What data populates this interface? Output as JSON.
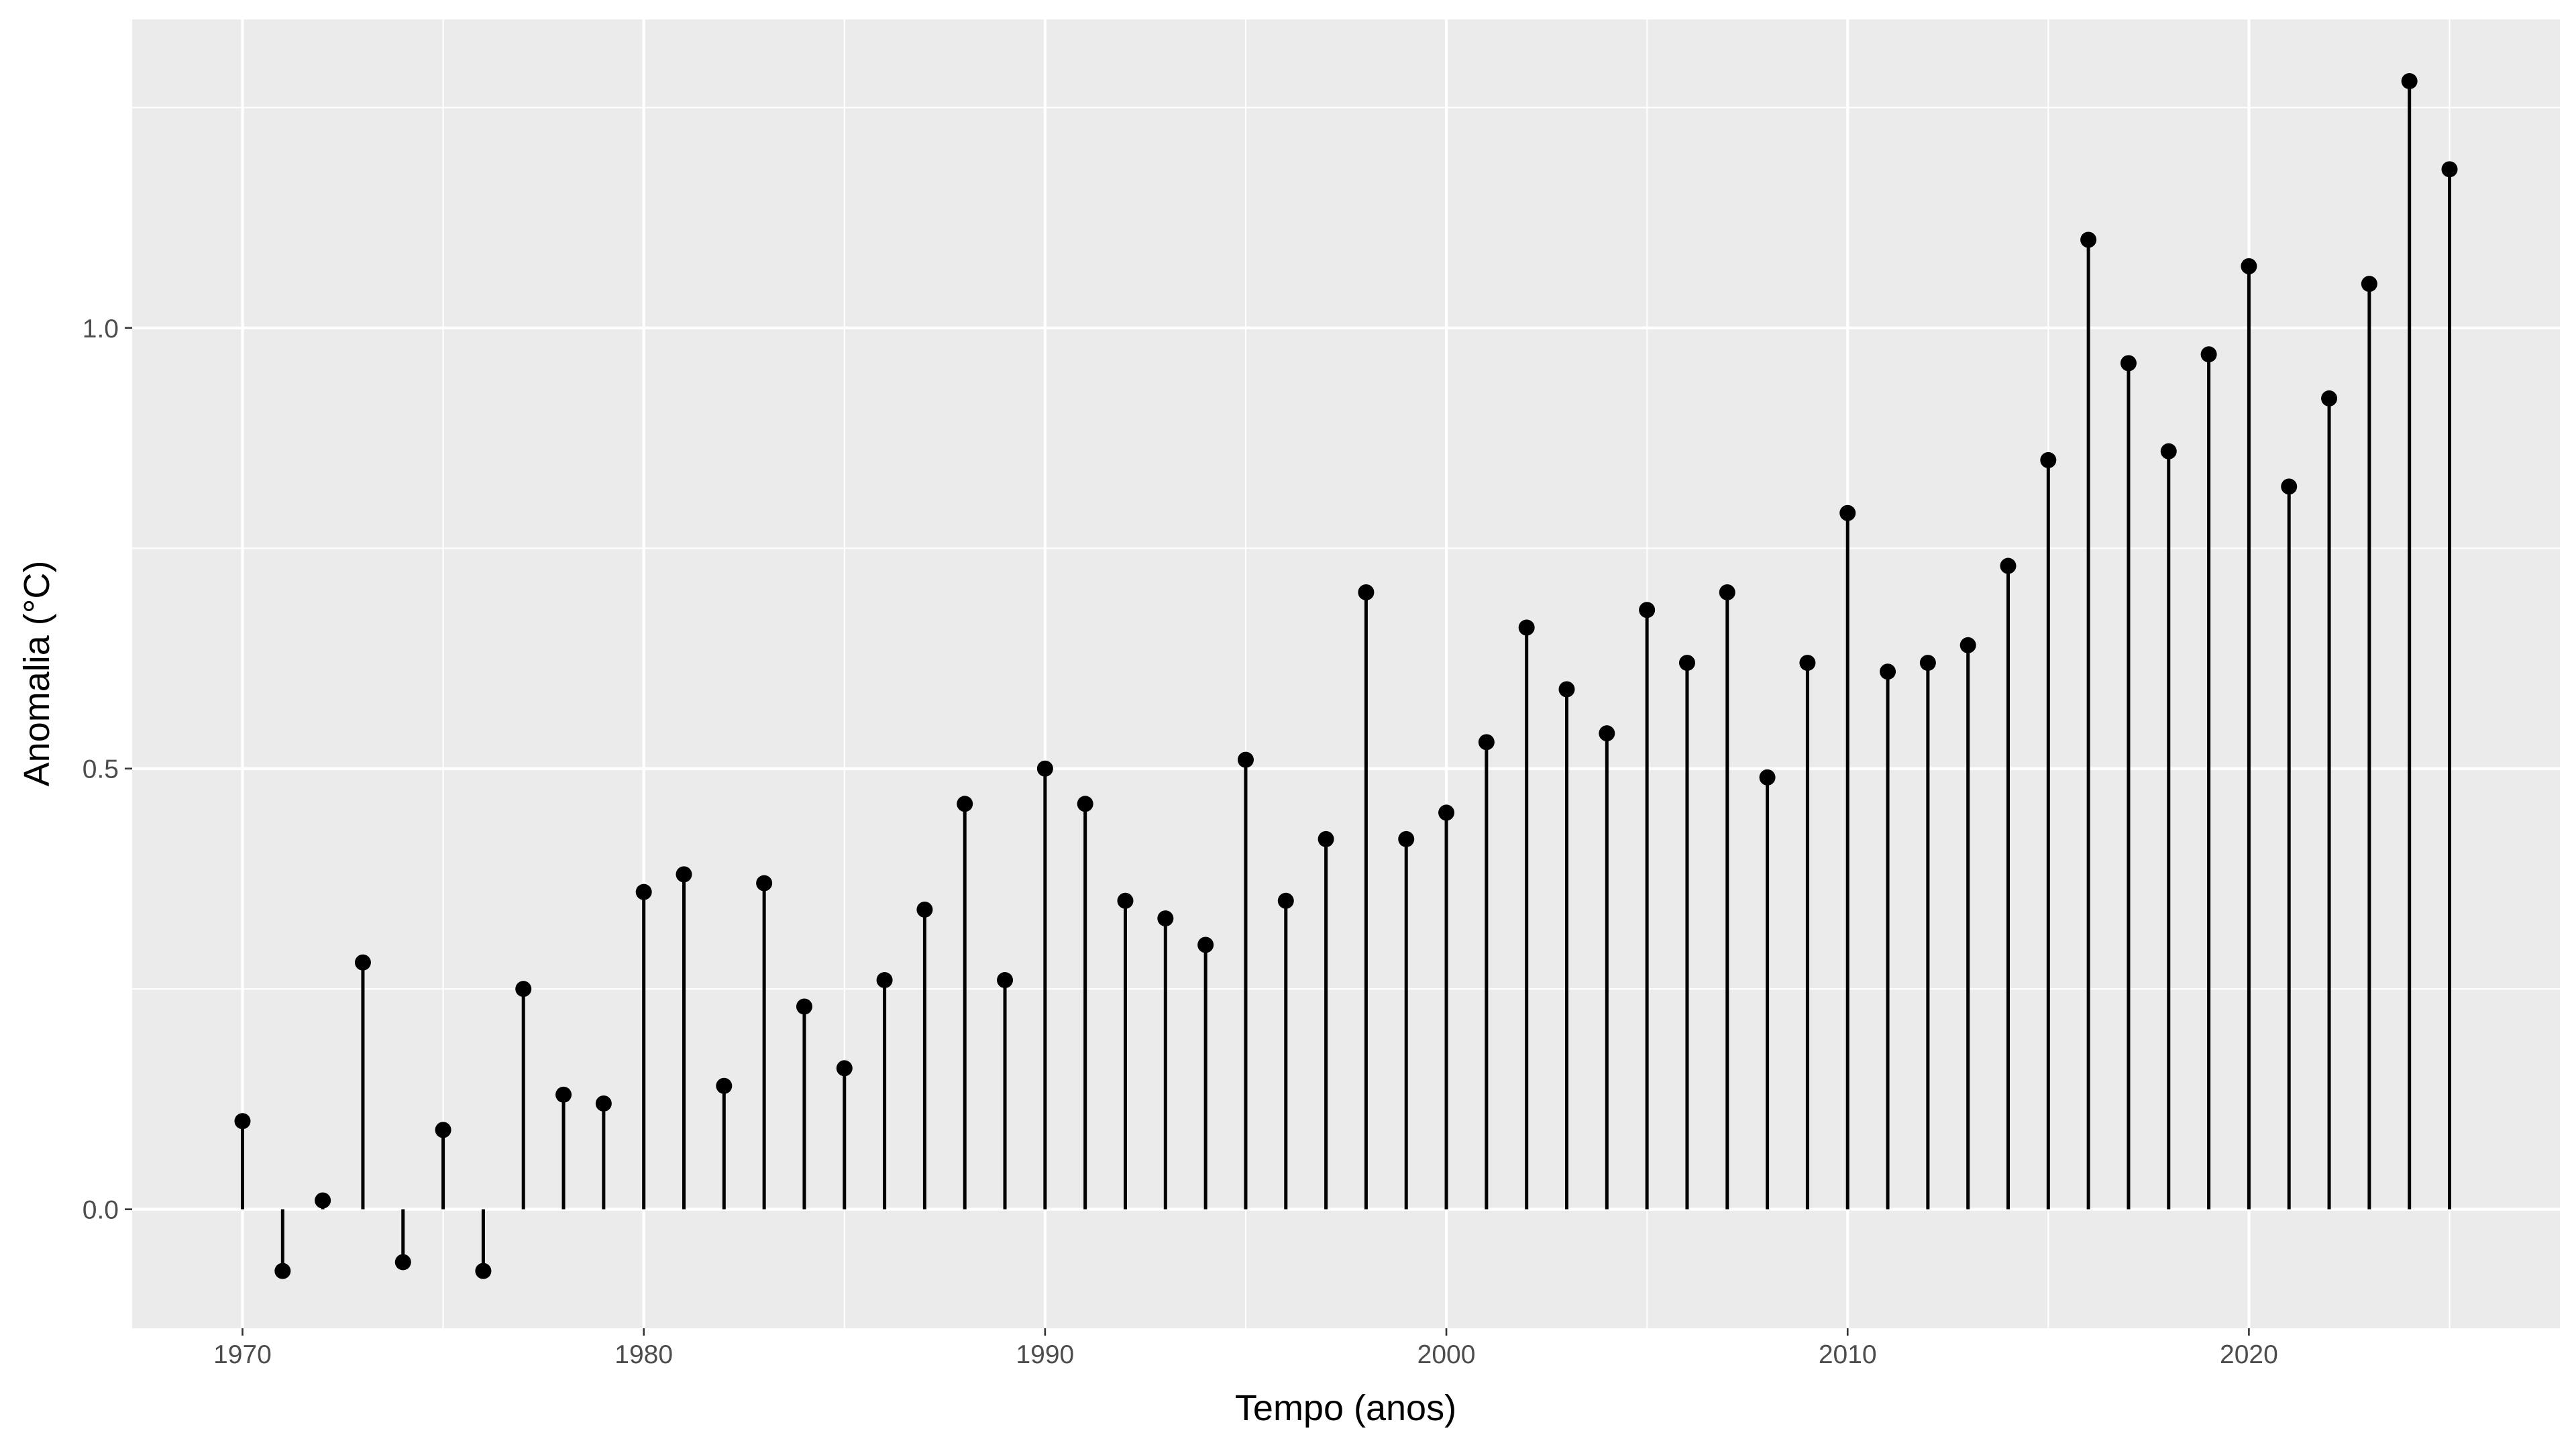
{
  "chart_data": {
    "type": "lollipop",
    "xlabel": "Tempo (anos)",
    "ylabel": "Anomalia (°C)",
    "xlim": [
      1967.25,
      2027.75
    ],
    "ylim": [
      -0.135,
      1.35
    ],
    "x_ticks": [
      1970,
      1980,
      1990,
      2000,
      2010,
      2020
    ],
    "y_ticks": [
      0.0,
      0.5,
      1.0
    ],
    "x_tick_labels": [
      "1970",
      "1980",
      "1990",
      "2000",
      "2010",
      "2020"
    ],
    "y_tick_labels": [
      "0.0",
      "0.5",
      "1.0"
    ],
    "grid": true,
    "legend": "none",
    "colors": {
      "panel": "#ebebeb",
      "grid": "#ffffff",
      "marks": "#000000"
    },
    "points": [
      {
        "x": 1970,
        "y": 0.1
      },
      {
        "x": 1971,
        "y": -0.07
      },
      {
        "x": 1972,
        "y": 0.01
      },
      {
        "x": 1973,
        "y": 0.28
      },
      {
        "x": 1974,
        "y": -0.06
      },
      {
        "x": 1975,
        "y": 0.09
      },
      {
        "x": 1976,
        "y": -0.07
      },
      {
        "x": 1977,
        "y": 0.25
      },
      {
        "x": 1978,
        "y": 0.13
      },
      {
        "x": 1979,
        "y": 0.12
      },
      {
        "x": 1980,
        "y": 0.36
      },
      {
        "x": 1981,
        "y": 0.38
      },
      {
        "x": 1982,
        "y": 0.14
      },
      {
        "x": 1983,
        "y": 0.37
      },
      {
        "x": 1984,
        "y": 0.23
      },
      {
        "x": 1985,
        "y": 0.16
      },
      {
        "x": 1986,
        "y": 0.26
      },
      {
        "x": 1987,
        "y": 0.34
      },
      {
        "x": 1988,
        "y": 0.46
      },
      {
        "x": 1989,
        "y": 0.26
      },
      {
        "x": 1990,
        "y": 0.5
      },
      {
        "x": 1991,
        "y": 0.46
      },
      {
        "x": 1992,
        "y": 0.35
      },
      {
        "x": 1993,
        "y": 0.33
      },
      {
        "x": 1994,
        "y": 0.3
      },
      {
        "x": 1995,
        "y": 0.51
      },
      {
        "x": 1996,
        "y": 0.35
      },
      {
        "x": 1997,
        "y": 0.42
      },
      {
        "x": 1998,
        "y": 0.7
      },
      {
        "x": 1999,
        "y": 0.42
      },
      {
        "x": 2000,
        "y": 0.45
      },
      {
        "x": 2001,
        "y": 0.53
      },
      {
        "x": 2002,
        "y": 0.66
      },
      {
        "x": 2003,
        "y": 0.59
      },
      {
        "x": 2004,
        "y": 0.54
      },
      {
        "x": 2005,
        "y": 0.68
      },
      {
        "x": 2006,
        "y": 0.62
      },
      {
        "x": 2007,
        "y": 0.7
      },
      {
        "x": 2008,
        "y": 0.49
      },
      {
        "x": 2009,
        "y": 0.62
      },
      {
        "x": 2010,
        "y": 0.79
      },
      {
        "x": 2011,
        "y": 0.61
      },
      {
        "x": 2012,
        "y": 0.62
      },
      {
        "x": 2013,
        "y": 0.64
      },
      {
        "x": 2014,
        "y": 0.73
      },
      {
        "x": 2015,
        "y": 0.85
      },
      {
        "x": 2016,
        "y": 1.1
      },
      {
        "x": 2017,
        "y": 0.96
      },
      {
        "x": 2018,
        "y": 0.86
      },
      {
        "x": 2019,
        "y": 0.97
      },
      {
        "x": 2020,
        "y": 1.07
      },
      {
        "x": 2021,
        "y": 0.82
      },
      {
        "x": 2022,
        "y": 0.92
      },
      {
        "x": 2023,
        "y": 1.05
      },
      {
        "x": 2024,
        "y": 1.28
      },
      {
        "x": 2025,
        "y": 1.18
      }
    ]
  }
}
